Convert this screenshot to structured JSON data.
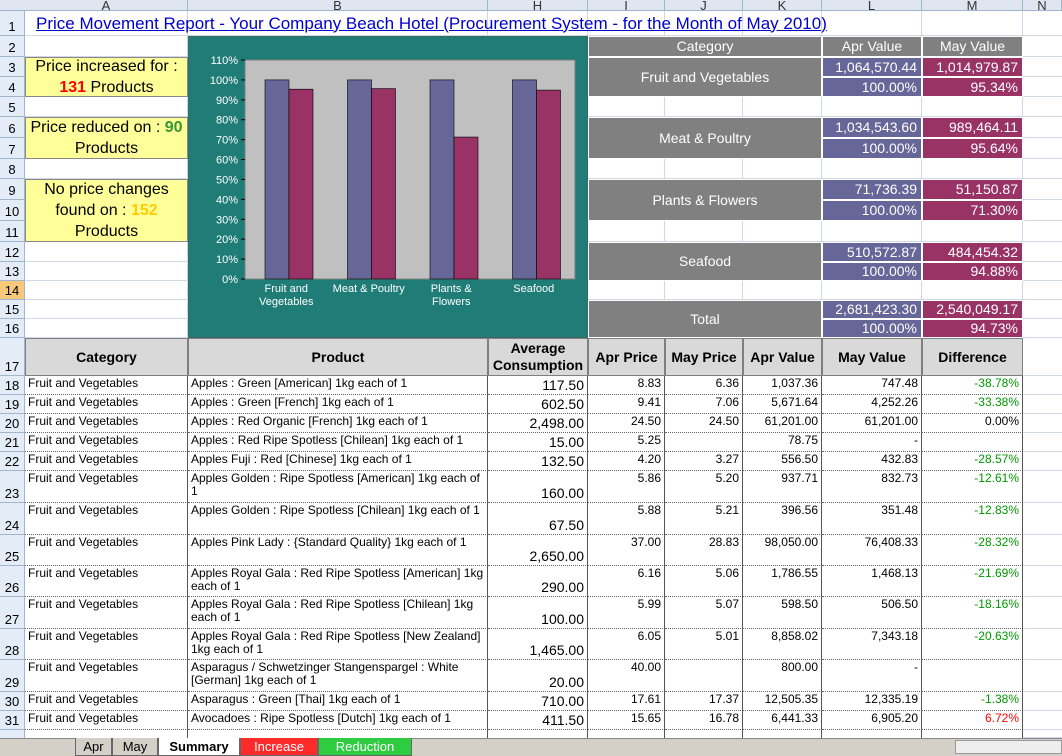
{
  "sheet": {
    "columns": [
      "A",
      "B",
      "H",
      "I",
      "J",
      "K",
      "L",
      "M",
      "N"
    ],
    "rows": [
      "1",
      "2",
      "3",
      "4",
      "5",
      "6",
      "7",
      "8",
      "9",
      "10",
      "11",
      "12",
      "13",
      "14",
      "15",
      "16",
      "17",
      "18",
      "19",
      "20",
      "21",
      "22",
      "23",
      "24",
      "25",
      "26",
      "27",
      "28",
      "29",
      "30",
      "31"
    ],
    "tabs": [
      "Apr",
      "May",
      "Summary",
      "Increase",
      "Reduction"
    ]
  },
  "title": "Price Movement Report -  Your Company Beach Hotel (Procurement System - for the Month of May 2010)",
  "summary_boxes": [
    {
      "prefix": "Price increased for :",
      "count": 131,
      "suffix": "Products",
      "color": "#ff0000"
    },
    {
      "prefix": "Price reduced on :",
      "count": 90,
      "suffix": "Products",
      "color": "#339933"
    },
    {
      "prefix": "No price changes found on :",
      "count": 152,
      "suffix": "Products",
      "color": "#ffcc00"
    }
  ],
  "chart_data": {
    "type": "bar",
    "categories": [
      "Fruit and Vegetables",
      "Meat & Poultry",
      "Plants & Flowers",
      "Seafood"
    ],
    "series": [
      {
        "color": "#666699",
        "values": [
          100,
          100,
          100,
          100
        ]
      },
      {
        "color": "#993366",
        "values": [
          95.34,
          95.64,
          71.3,
          94.88
        ]
      }
    ],
    "ylim": [
      0,
      110
    ],
    "yticks": [
      {
        "value": 0,
        "label": "0%"
      },
      {
        "value": 10,
        "label": "10%"
      },
      {
        "value": 20,
        "label": "20%"
      },
      {
        "value": 30,
        "label": "30%"
      },
      {
        "value": 40,
        "label": "40%"
      },
      {
        "value": 50,
        "label": "50%"
      },
      {
        "value": 60,
        "label": "60%"
      },
      {
        "value": 70,
        "label": "70%"
      },
      {
        "value": 80,
        "label": "80%"
      },
      {
        "value": 90,
        "label": "90%"
      },
      {
        "value": 100,
        "label": "100%"
      },
      {
        "value": 110,
        "label": "110%"
      }
    ],
    "grid": false
  },
  "category_summary": {
    "headers": [
      "Category",
      "Apr Value",
      "May Value"
    ],
    "rows": [
      {
        "category": "Fruit and Vegetables",
        "apr_value": "1,064,570.44",
        "may_value": "1,014,979.87",
        "apr_share": "100.00%",
        "may_share": "95.34%"
      },
      {
        "category": "Meat & Poultry",
        "apr_value": "1,034,543.60",
        "may_value": "989,464.11",
        "apr_share": "100.00%",
        "may_share": "95.64%"
      },
      {
        "category": "Plants & Flowers",
        "apr_value": "71,736.39",
        "may_value": "51,150.87",
        "apr_share": "100.00%",
        "may_share": "71.30%"
      },
      {
        "category": "Seafood",
        "apr_value": "510,572.87",
        "may_value": "484,454.32",
        "apr_share": "100.00%",
        "may_share": "94.88%"
      },
      {
        "category": "Total",
        "apr_value": "2,681,423.30",
        "may_value": "2,540,049.17",
        "apr_share": "100.00%",
        "may_share": "94.73%"
      }
    ]
  },
  "table": {
    "headers": [
      "Category",
      "Product",
      "Average Consumption",
      "Apr Price",
      "May Price",
      "Apr Value",
      "May Value",
      "Difference"
    ],
    "rows": [
      [
        "Fruit and Vegetables",
        "Apples : Green [American] 1kg  each of 1",
        "117.50",
        "8.83",
        "6.36",
        "1,037.36",
        "747.48",
        "-38.78%"
      ],
      [
        "Fruit and Vegetables",
        "Apples : Green [French] 1kg  each of 1",
        "602.50",
        "9.41",
        "7.06",
        "5,671.64",
        "4,252.26",
        "-33.38%"
      ],
      [
        "Fruit and Vegetables",
        "Apples : Red Organic [French] 1kg  each of 1",
        "2,498.00",
        "24.50",
        "24.50",
        "61,201.00",
        "61,201.00",
        "0.00%"
      ],
      [
        "Fruit and Vegetables",
        "Apples : Red Ripe Spotless [Chilean] 1kg  each of 1",
        "15.00",
        "5.25",
        null,
        "78.75",
        "-",
        null
      ],
      [
        "Fruit and Vegetables",
        "Apples Fuji : Red [Chinese] 1kg  each of 1",
        "132.50",
        "4.20",
        "3.27",
        "556.50",
        "432.83",
        "-28.57%"
      ],
      [
        "Fruit and Vegetables",
        "Apples Golden : Ripe Spotless [American] 1kg  each of 1",
        "160.00",
        "5.86",
        "5.20",
        "937.71",
        "832.73",
        "-12.61%"
      ],
      [
        "Fruit and Vegetables",
        "Apples Golden : Ripe Spotless [Chilean] 1kg  each of 1",
        "67.50",
        "5.88",
        "5.21",
        "396.56",
        "351.48",
        "-12.83%"
      ],
      [
        "Fruit and Vegetables",
        "Apples Pink Lady : {Standard Quality} 1kg  each of 1",
        "2,650.00",
        "37.00",
        "28.83",
        "98,050.00",
        "76,408.33",
        "-28.32%"
      ],
      [
        "Fruit and Vegetables",
        "Apples Royal Gala : Red Ripe Spotless [American] 1kg each of 1",
        "290.00",
        "6.16",
        "5.06",
        "1,786.55",
        "1,468.13",
        "-21.69%"
      ],
      [
        "Fruit and Vegetables",
        "Apples Royal Gala : Red Ripe Spotless [Chilean] 1kg each of 1",
        "100.00",
        "5.99",
        "5.07",
        "598.50",
        "506.50",
        "-18.16%"
      ],
      [
        "Fruit and Vegetables",
        "Apples Royal Gala : Red Ripe Spotless [New Zealand] 1kg  each of 1",
        "1,465.00",
        "6.05",
        "5.01",
        "8,858.02",
        "7,343.18",
        "-20.63%"
      ],
      [
        "Fruit and Vegetables",
        "Asparagus / Schwetzinger Stangenspargel : White [German] 1kg  each of 1",
        "20.00",
        "40.00",
        null,
        "800.00",
        "-",
        null
      ],
      [
        "Fruit and Vegetables",
        "Asparagus : Green [Thai] 1kg  each of 1",
        "710.00",
        "17.61",
        "17.37",
        "12,505.35",
        "12,335.19",
        "-1.38%"
      ],
      [
        "Fruit and Vegetables",
        "Avocadoes : Ripe Spotless [Dutch] 1kg  each of 1",
        "411.50",
        "15.65",
        "16.78",
        "6,441.33",
        "6,905.20",
        "6.72%"
      ]
    ]
  }
}
